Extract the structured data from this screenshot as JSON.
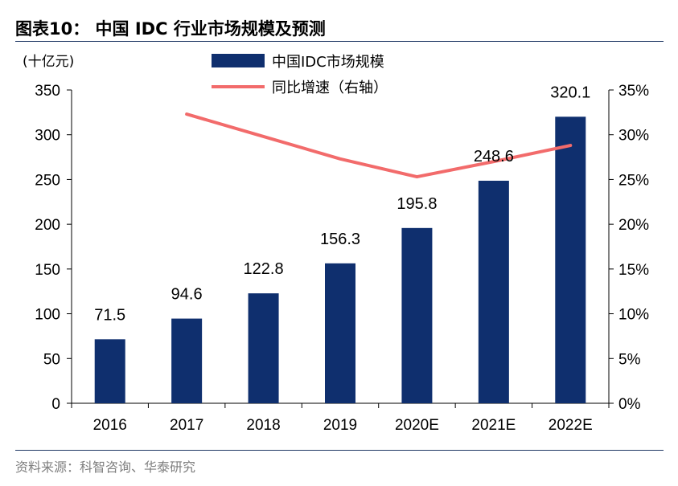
{
  "title": "图表10：  中国 IDC 行业市场规模及预测",
  "source": "资料来源：科智咨询、华泰研究",
  "chart_data": {
    "type": "bar",
    "categories": [
      "2016",
      "2017",
      "2018",
      "2019",
      "2020E",
      "2021E",
      "2022E"
    ],
    "y_unit": "(十亿元)",
    "ylim": [
      0,
      350
    ],
    "y_ticks": [
      "0",
      "50",
      "100",
      "150",
      "200",
      "250",
      "300",
      "350"
    ],
    "y2lim": [
      0,
      35
    ],
    "y2_ticks": [
      "0%",
      "5%",
      "10%",
      "15%",
      "20%",
      "25%",
      "30%",
      "35%"
    ],
    "bar_color": "#0f2f6e",
    "line_color": "#f26b6b",
    "legend_position": "top-center",
    "grid": false,
    "series": [
      {
        "name": "中国IDC市场规模",
        "type": "bar",
        "axis": "left",
        "values": [
          71.5,
          94.6,
          122.8,
          156.3,
          195.8,
          248.6,
          320.1
        ],
        "labels": [
          "71.5",
          "94.6",
          "122.8",
          "156.3",
          "195.8",
          "248.6",
          "320.1"
        ]
      },
      {
        "name": "同比增速（右轴）",
        "type": "line",
        "axis": "right",
        "values": [
          null,
          32.3,
          29.8,
          27.3,
          25.3,
          27.0,
          28.8
        ]
      }
    ]
  }
}
